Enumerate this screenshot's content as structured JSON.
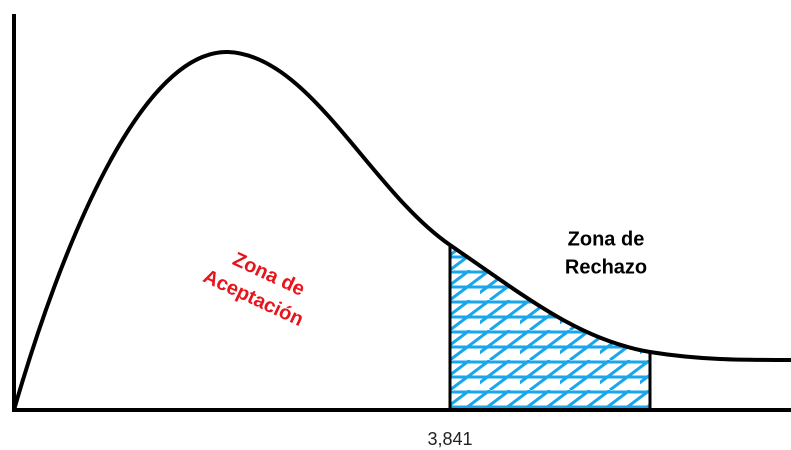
{
  "acceptance_zone": {
    "lines": [
      "Zona de",
      "Aceptación"
    ]
  },
  "rejection_zone": {
    "lines": [
      "Zona de",
      "Rechazo"
    ]
  },
  "critical_value_label": "3,841"
}
